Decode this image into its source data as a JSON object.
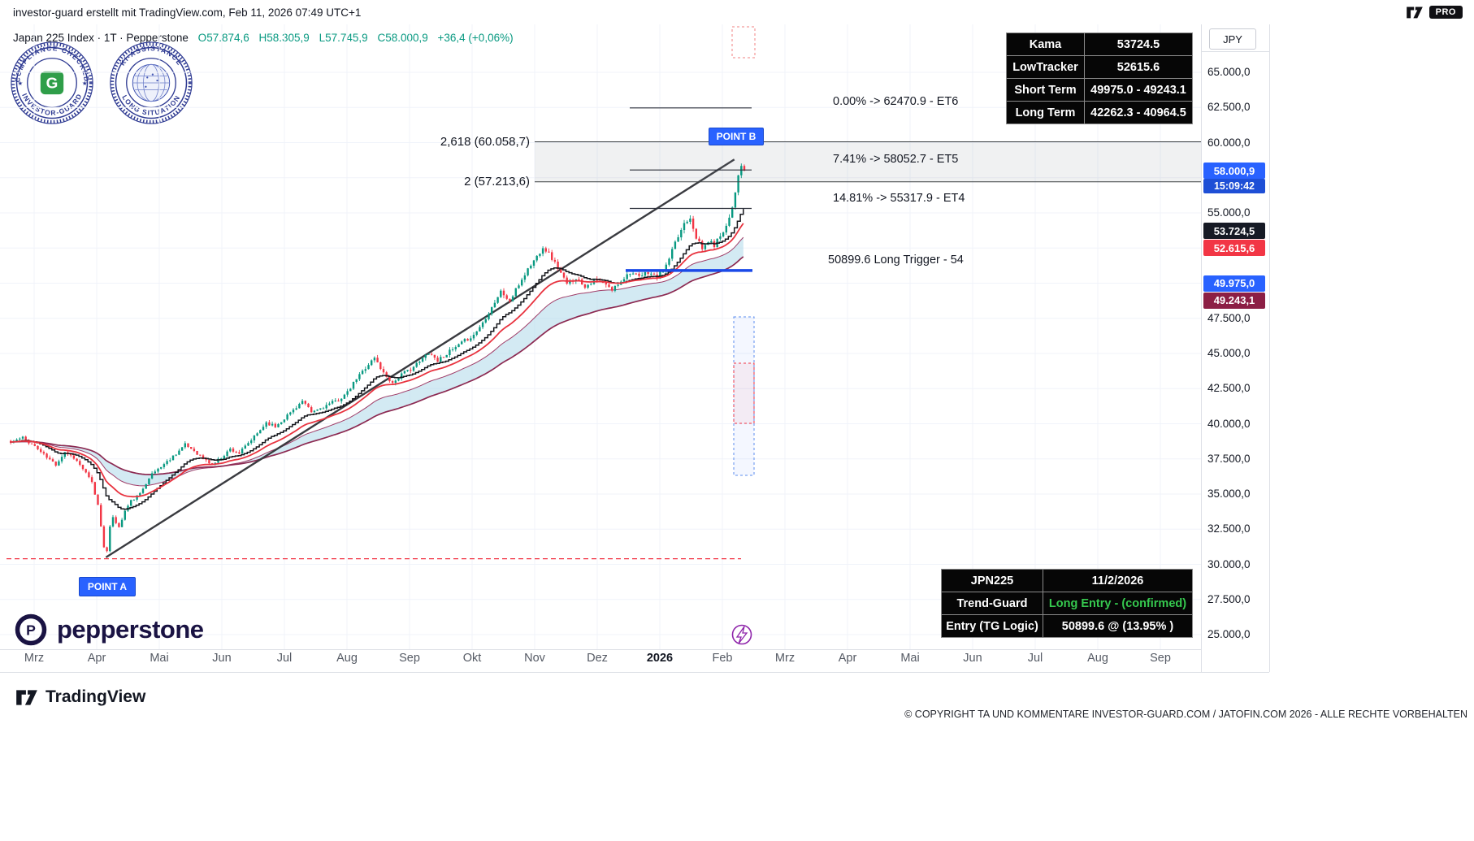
{
  "header": {
    "attribution": "investor-guard erstellt mit TradingView.com, Feb 11, 2026 07:49 UTC+1",
    "pro_badge": "PRO"
  },
  "symbol_line": {
    "title": "Japan 225 Index · 1T · Pepperstone",
    "ohlc": [
      {
        "k": "O",
        "v": "57.874,6"
      },
      {
        "k": "H",
        "v": "58.305,9"
      },
      {
        "k": "L",
        "v": "57.745,9"
      },
      {
        "k": "C",
        "v": "58.000,9"
      }
    ],
    "change": "+36,4 (+0,06%)"
  },
  "badges": {
    "compliance": {
      "top": "COMPLIANCE CHECKED",
      "bottom": "INVESTOR-GUARD",
      "center_letter": "G"
    },
    "ki": {
      "top": "KI-ASSISTANCE",
      "bottom": "LONG SITUATION"
    }
  },
  "info_table": {
    "rows": [
      [
        "Kama",
        "53724.5"
      ],
      [
        "LowTracker",
        "52615.6"
      ],
      [
        "Short Term",
        "49975.0 - 49243.1"
      ],
      [
        "Long Term",
        "42262.3 - 40964.5"
      ]
    ]
  },
  "signal_table": {
    "rows": [
      [
        "JPN225",
        "11/2/2026"
      ],
      [
        "Trend-Guard",
        "Long Entry - (confirmed)"
      ],
      [
        "Entry (TG Logic)",
        "50899.6 @ (13.95% )"
      ]
    ]
  },
  "annotations": {
    "fib_b": "2,618 (60.058,7)",
    "fib_a": "2 (57.213,6)",
    "et6": "0.00% -> 62470.9 - ET6",
    "et5": "7.41% -> 58052.7 - ET5",
    "et4": "14.81% -> 55317.9 - ET4",
    "trigger": "50899.6  Long Trigger - 54",
    "point_a": "POINT A",
    "point_b": "POINT B"
  },
  "axis": {
    "currency": "JPY",
    "ticks": [
      {
        "p": 65000,
        "label": "65.000,0"
      },
      {
        "p": 62500,
        "label": "62.500,0"
      },
      {
        "p": 60000,
        "label": "60.000,0"
      },
      {
        "p": 55000,
        "label": "55.000,0"
      },
      {
        "p": 47500,
        "label": "47.500,0"
      },
      {
        "p": 45000,
        "label": "45.000,0"
      },
      {
        "p": 42500,
        "label": "42.500,0"
      },
      {
        "p": 40000,
        "label": "40.000,0"
      },
      {
        "p": 37500,
        "label": "37.500,0"
      },
      {
        "p": 35000,
        "label": "35.000,0"
      },
      {
        "p": 32500,
        "label": "32.500,0"
      },
      {
        "p": 30000,
        "label": "30.000,0"
      },
      {
        "p": 27500,
        "label": "27.500,0"
      },
      {
        "p": 25000,
        "label": "25.000,0"
      }
    ],
    "badges": [
      {
        "p": 58000.9,
        "label": "58.000,9",
        "bg": "#2962ff",
        "timer": "15:09:42",
        "timer_bg": "#1e4fd6"
      },
      {
        "p": 53724.5,
        "label": "53.724,5",
        "bg": "#161a25"
      },
      {
        "p": 52615.6,
        "label": "52.615,6",
        "bg": "#f23645"
      },
      {
        "p": 49975.0,
        "label": "49.975,0",
        "bg": "#2962ff"
      },
      {
        "p": 49243.1,
        "label": "49.243,1",
        "bg": "#8c1f45"
      }
    ]
  },
  "x_axis": {
    "labels": [
      "Mrz",
      "Apr",
      "Mai",
      "Jun",
      "Jul",
      "Aug",
      "Sep",
      "Okt",
      "Nov",
      "Dez",
      "2026",
      "Feb",
      "Mrz",
      "Apr",
      "Mai",
      "Jun",
      "Jul",
      "Aug",
      "Sep"
    ]
  },
  "footer": {
    "brand": "TradingView",
    "copyright": "© COPYRIGHT TA UND KOMMENTARE INVESTOR-GUARD.COM / JATOFIN.COM 2026 - ALLE RECHTE VORBEHALTEN"
  },
  "pepperstone": {
    "wordmark": "pepperstone"
  },
  "chart_data": {
    "type": "candlestick",
    "title": "Japan 225 Index (JPN225) · 1T (daily) · Pepperstone",
    "currency": "JPY",
    "today_ohlc": {
      "open": 57874.6,
      "high": 58305.9,
      "low": 57745.9,
      "close": 58000.9,
      "change": 36.4,
      "change_pct": 0.06
    },
    "ylim": [
      25000,
      65000
    ],
    "x_range": [
      "Mrz 2025",
      "Feb 2026"
    ],
    "levels": {
      "fib_2618": 60058.7,
      "fib_2": 57213.6,
      "et6": 62470.9,
      "et5": 58052.7,
      "et4": 55317.9,
      "long_trigger": 50899.6,
      "base_line": 30400
    },
    "indicators": {
      "kama": 53724.5,
      "low_tracker": 52615.6,
      "short_term": [
        49975.0,
        49243.1
      ],
      "long_term": [
        42262.3,
        40964.5
      ]
    },
    "trend_line": {
      "from": {
        "i": 32,
        "price": 30500
      },
      "to": {
        "i": 241,
        "price": 58800
      }
    },
    "price_anchors": [
      [
        0,
        38700
      ],
      [
        4,
        39000
      ],
      [
        8,
        38400
      ],
      [
        12,
        37600
      ],
      [
        15,
        37100
      ],
      [
        18,
        38000
      ],
      [
        21,
        37600
      ],
      [
        24,
        36800
      ],
      [
        27,
        35800
      ],
      [
        29,
        34200
      ],
      [
        31,
        31300
      ],
      [
        32,
        30900
      ],
      [
        33,
        32600
      ],
      [
        34,
        33400
      ],
      [
        36,
        32600
      ],
      [
        38,
        33800
      ],
      [
        40,
        34500
      ],
      [
        43,
        35000
      ],
      [
        46,
        36200
      ],
      [
        49,
        36800
      ],
      [
        52,
        37300
      ],
      [
        55,
        37900
      ],
      [
        58,
        38500
      ],
      [
        61,
        38100
      ],
      [
        64,
        37500
      ],
      [
        67,
        37100
      ],
      [
        70,
        37600
      ],
      [
        73,
        38200
      ],
      [
        76,
        37900
      ],
      [
        79,
        38600
      ],
      [
        82,
        39300
      ],
      [
        85,
        40100
      ],
      [
        88,
        39800
      ],
      [
        91,
        40400
      ],
      [
        94,
        41000
      ],
      [
        97,
        41600
      ],
      [
        100,
        40800
      ],
      [
        103,
        41100
      ],
      [
        106,
        41400
      ],
      [
        109,
        41700
      ],
      [
        112,
        42200
      ],
      [
        115,
        43200
      ],
      [
        118,
        44000
      ],
      [
        121,
        44700
      ],
      [
        124,
        43600
      ],
      [
        127,
        42900
      ],
      [
        130,
        43500
      ],
      [
        133,
        43900
      ],
      [
        136,
        44400
      ],
      [
        139,
        45100
      ],
      [
        142,
        44500
      ],
      [
        145,
        45000
      ],
      [
        148,
        45400
      ],
      [
        151,
        45900
      ],
      [
        154,
        46300
      ],
      [
        157,
        47200
      ],
      [
        160,
        48300
      ],
      [
        163,
        49400
      ],
      [
        166,
        48700
      ],
      [
        169,
        49900
      ],
      [
        172,
        51000
      ],
      [
        175,
        51900
      ],
      [
        177,
        52600
      ],
      [
        179,
        52100
      ],
      [
        182,
        51100
      ],
      [
        185,
        49900
      ],
      [
        188,
        50400
      ],
      [
        191,
        49800
      ],
      [
        194,
        50200
      ],
      [
        197,
        50000
      ],
      [
        200,
        49500
      ],
      [
        203,
        50200
      ],
      [
        206,
        50800
      ],
      [
        209,
        50400
      ],
      [
        212,
        50800
      ],
      [
        215,
        50400
      ],
      [
        218,
        51200
      ],
      [
        220,
        52300
      ],
      [
        222,
        53300
      ],
      [
        224,
        54300
      ],
      [
        226,
        54700
      ],
      [
        228,
        53300
      ],
      [
        230,
        52400
      ],
      [
        232,
        53000
      ],
      [
        234,
        52700
      ],
      [
        236,
        53400
      ],
      [
        238,
        54100
      ],
      [
        239,
        54700
      ],
      [
        240,
        55500
      ],
      [
        241,
        56500
      ],
      [
        242,
        57800
      ],
      [
        243,
        58200
      ],
      [
        244,
        58000.9
      ]
    ],
    "colors": {
      "up": "#089981",
      "down": "#f23645",
      "kama_line": "#15161b",
      "fast_line": "#e8333f",
      "band_fill": "#aed9ea",
      "band_lower": "#8c2a52",
      "trigger": "#1a49e8",
      "trend": "#3a3b40"
    }
  }
}
